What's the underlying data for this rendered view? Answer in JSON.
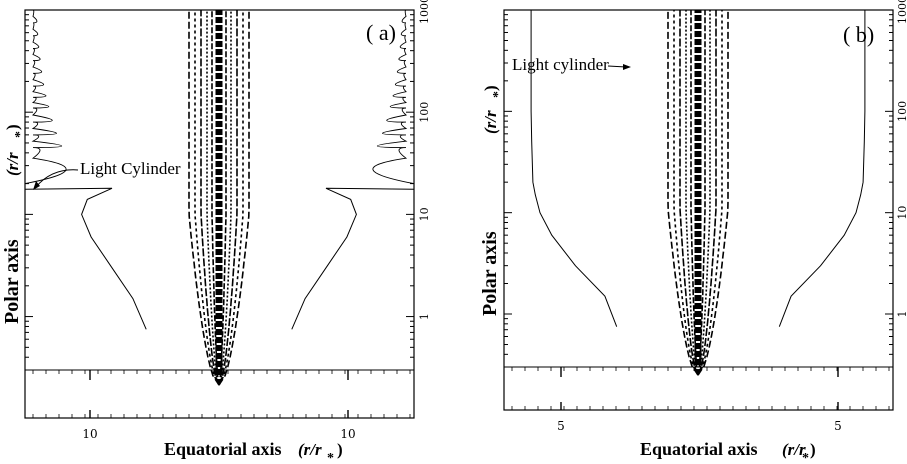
{
  "chart_data": [
    {
      "type": "line",
      "panel_label": "( a)",
      "xlabel": "Equatorial axis",
      "xlabel_unit": "(r/r",
      "xlabel_unit_sub": "*",
      "xlabel_unit_close": ")",
      "ylabel": "Polar axis",
      "ylabel_unit": "(r/r",
      "ylabel_unit_sub": "*",
      "ylabel_unit_close": ")",
      "yscale": "log",
      "ylim": [
        0.3,
        1000
      ],
      "y_ticks": [
        "1",
        "10",
        "100",
        "1000"
      ],
      "x_ticks": [
        "10",
        "10"
      ],
      "annotation": "Light Cylinder",
      "light_cylinder_r": [
        0.75,
        1.5,
        3,
        6,
        10,
        14,
        18
      ],
      "light_cylinder_x": [
        13.5,
        14.2,
        15.3,
        16.4,
        16.9,
        16.6,
        15.3
      ]
    },
    {
      "type": "line",
      "panel_label": "( b)",
      "xlabel": "Equatorial axis",
      "xlabel_unit": "(r/r",
      "xlabel_unit_sub": "*",
      "xlabel_unit_close": " )",
      "ylabel": "Polar axis",
      "ylabel_unit": "(r/r",
      "ylabel_unit_sub": "*",
      "ylabel_unit_close": ")",
      "yscale": "log",
      "ylim": [
        0.3,
        1000
      ],
      "y_ticks": [
        "1",
        "10",
        "100",
        "1000"
      ],
      "x_ticks": [
        "5",
        "5"
      ],
      "annotation": "Light cylinder",
      "light_cylinder_r": [
        0.75,
        1.5,
        3,
        6,
        10,
        15,
        20,
        50,
        100,
        1000
      ],
      "light_cylinder_x": [
        5.2,
        5.4,
        5.9,
        6.3,
        6.5,
        6.58,
        6.62,
        6.64,
        6.65,
        6.65
      ]
    }
  ]
}
